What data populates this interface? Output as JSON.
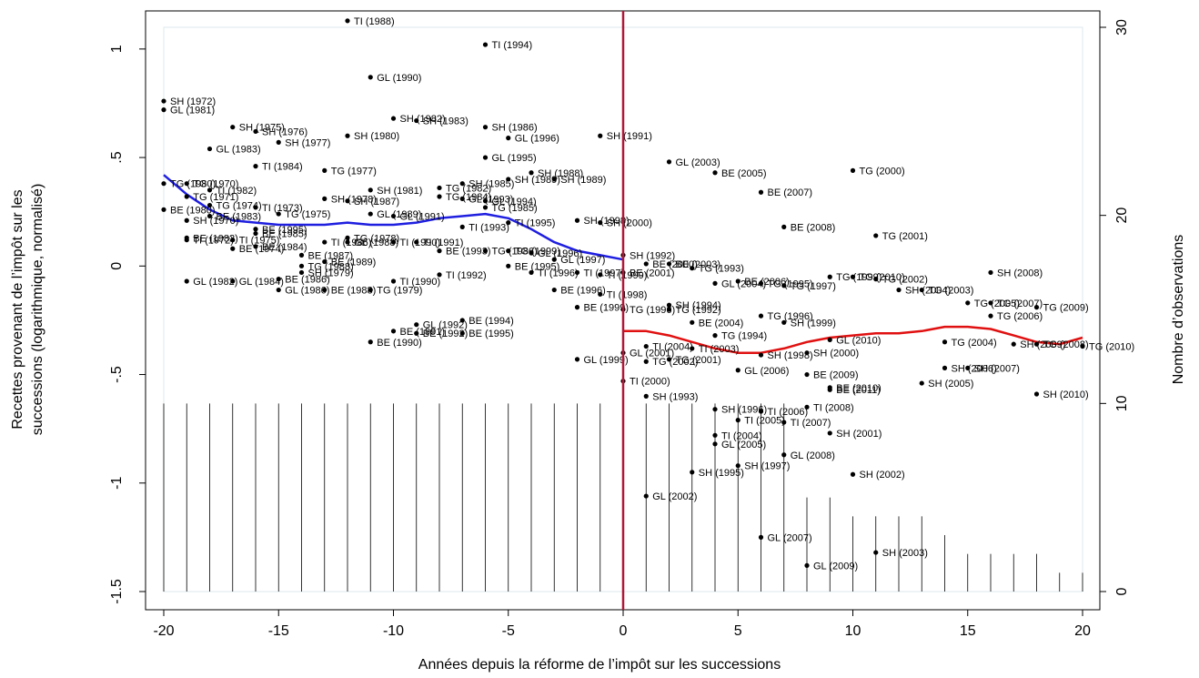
{
  "chart_data": {
    "type": "scatter",
    "title": "",
    "xlabel": "Années depuis la réforme de l’impôt sur les successions",
    "ylabel_lines": [
      "Recettes provenant de l’impôt sur les",
      "successions (logarithmique, normalisé)"
    ],
    "ylabel_right": "Nombre d’observations",
    "xlim": [
      -20,
      20
    ],
    "ylim": [
      -1.5,
      1.1
    ],
    "ylim_right": [
      0,
      30
    ],
    "x_ticks": [
      -20,
      -15,
      -10,
      -5,
      0,
      5,
      10,
      15,
      20
    ],
    "y_ticks": [
      -1.5,
      -1,
      -0.5,
      0,
      0.5,
      1
    ],
    "y_tick_labels": [
      "-1.5",
      "-1",
      "-.5",
      "0",
      ".5",
      "1"
    ],
    "y_ticks_right": [
      0,
      10,
      20,
      30
    ],
    "reference_line_x": 0,
    "colors": {
      "pre_trend": "#1f1fe0",
      "post_trend": "#e01010",
      "reform_line": "#b0183a",
      "points": "#000000"
    },
    "points": [
      {
        "x": -12,
        "y": 1.13,
        "label": "TI (1988)"
      },
      {
        "x": -6,
        "y": 1.02,
        "label": "TI (1994)"
      },
      {
        "x": -11,
        "y": 0.87,
        "label": "GL (1990)"
      },
      {
        "x": -20,
        "y": 0.76,
        "label": "SH (1972)"
      },
      {
        "x": -20,
        "y": 0.72,
        "label": "GL (1981)"
      },
      {
        "x": -10,
        "y": 0.68,
        "label": "SH (1982)"
      },
      {
        "x": -9,
        "y": 0.67,
        "label": "SH (1983)"
      },
      {
        "x": -17,
        "y": 0.64,
        "label": "SH (1975)"
      },
      {
        "x": -16,
        "y": 0.62,
        "label": "SH (1976)"
      },
      {
        "x": -6,
        "y": 0.64,
        "label": "SH (1986)"
      },
      {
        "x": -12,
        "y": 0.6,
        "label": "SH (1980)"
      },
      {
        "x": -1,
        "y": 0.6,
        "label": "SH (1991)"
      },
      {
        "x": -5,
        "y": 0.59,
        "label": "GL (1996)"
      },
      {
        "x": -15,
        "y": 0.57,
        "label": "SH (1977)"
      },
      {
        "x": -18,
        "y": 0.54,
        "label": "GL (1983)"
      },
      {
        "x": -6,
        "y": 0.5,
        "label": "GL (1995)"
      },
      {
        "x": 2,
        "y": 0.48,
        "label": "GL (2003)"
      },
      {
        "x": -16,
        "y": 0.46,
        "label": "TI (1984)"
      },
      {
        "x": -13,
        "y": 0.44,
        "label": "TG (1977)"
      },
      {
        "x": 10,
        "y": 0.44,
        "label": "TG (2000)"
      },
      {
        "x": 4,
        "y": 0.43,
        "label": "BE (2005)"
      },
      {
        "x": -4,
        "y": 0.43,
        "label": "SH (1988)"
      },
      {
        "x": -5,
        "y": 0.4,
        "label": "SH (1989)"
      },
      {
        "x": -3,
        "y": 0.4,
        "label": "SH (1989)"
      },
      {
        "x": -20,
        "y": 0.38,
        "label": "TG (1980)"
      },
      {
        "x": -19,
        "y": 0.38,
        "label": "TG (1970)"
      },
      {
        "x": -7,
        "y": 0.38,
        "label": "SH (1985)"
      },
      {
        "x": -18,
        "y": 0.35,
        "label": "TI (1982)"
      },
      {
        "x": -11,
        "y": 0.35,
        "label": "SH (1981)"
      },
      {
        "x": -8,
        "y": 0.36,
        "label": "TG (1982)"
      },
      {
        "x": 6,
        "y": 0.34,
        "label": "BE (2007)"
      },
      {
        "x": -19,
        "y": 0.32,
        "label": "TG (1971)"
      },
      {
        "x": -13,
        "y": 0.31,
        "label": "SH (1978)"
      },
      {
        "x": -12,
        "y": 0.3,
        "label": "SH (1987)"
      },
      {
        "x": -8,
        "y": 0.32,
        "label": "TG (1984)"
      },
      {
        "x": -7,
        "y": 0.31,
        "label": "GL (1993)"
      },
      {
        "x": -6,
        "y": 0.3,
        "label": "GL (1994)"
      },
      {
        "x": -18,
        "y": 0.28,
        "label": "TG (1974)"
      },
      {
        "x": -16,
        "y": 0.27,
        "label": "TI (1973)"
      },
      {
        "x": -6,
        "y": 0.27,
        "label": "TG (1985)"
      },
      {
        "x": -20,
        "y": 0.26,
        "label": "BE (1980)"
      },
      {
        "x": -18,
        "y": 0.23,
        "label": "BE (1983)"
      },
      {
        "x": -15,
        "y": 0.24,
        "label": "TG (1975)"
      },
      {
        "x": -11,
        "y": 0.24,
        "label": "GL (1989)"
      },
      {
        "x": -10,
        "y": 0.23,
        "label": "GL (1991)"
      },
      {
        "x": -19,
        "y": 0.21,
        "label": "SH (1970)"
      },
      {
        "x": -5,
        "y": 0.2,
        "label": "TI (1995)"
      },
      {
        "x": -2,
        "y": 0.21,
        "label": "SH (1998)"
      },
      {
        "x": -1,
        "y": 0.2,
        "label": "SH (2000)"
      },
      {
        "x": -7,
        "y": 0.18,
        "label": "TI (1993)"
      },
      {
        "x": 7,
        "y": 0.18,
        "label": "BE (2008)"
      },
      {
        "x": -16,
        "y": 0.17,
        "label": "BE (1995)"
      },
      {
        "x": -16,
        "y": 0.15,
        "label": "BE (1985)"
      },
      {
        "x": 11,
        "y": 0.14,
        "label": "TG (2001)"
      },
      {
        "x": -19,
        "y": 0.13,
        "label": "BE (1982)"
      },
      {
        "x": -19,
        "y": 0.12,
        "label": "TI (1972)"
      },
      {
        "x": -12,
        "y": 0.13,
        "label": "TG (1978)"
      },
      {
        "x": -17,
        "y": 0.12,
        "label": "TI (1975)"
      },
      {
        "x": -13,
        "y": 0.11,
        "label": "TI (1986)"
      },
      {
        "x": -12,
        "y": 0.11,
        "label": "GL (1988)"
      },
      {
        "x": -10,
        "y": 0.11,
        "label": "TI (1990)"
      },
      {
        "x": -9,
        "y": 0.11,
        "label": "TI (1991)"
      },
      {
        "x": -16,
        "y": 0.09,
        "label": "BE (1984)"
      },
      {
        "x": -17,
        "y": 0.08,
        "label": "BE (1974)"
      },
      {
        "x": -6,
        "y": 0.07,
        "label": "TG (1986)"
      },
      {
        "x": -8,
        "y": 0.07,
        "label": "BE (1993)"
      },
      {
        "x": -5,
        "y": 0.07,
        "label": "TG (1999)"
      },
      {
        "x": -4,
        "y": 0.06,
        "label": "GL (1996)"
      },
      {
        "x": 0,
        "y": 0.05,
        "label": "SH (1992)"
      },
      {
        "x": -14,
        "y": 0.05,
        "label": "BE (1987)"
      },
      {
        "x": -3,
        "y": 0.03,
        "label": "GL (1997)"
      },
      {
        "x": 1,
        "y": 0.01,
        "label": "BE (2000)"
      },
      {
        "x": 2,
        "y": 0.01,
        "label": "BE (2003)"
      },
      {
        "x": -13,
        "y": 0.02,
        "label": "BE (1989)"
      },
      {
        "x": -14,
        "y": 0.0,
        "label": "TG (1988)"
      },
      {
        "x": -5,
        "y": 0.0,
        "label": "BE (1995)"
      },
      {
        "x": 3,
        "y": -0.01,
        "label": "TG (1993)"
      },
      {
        "x": -14,
        "y": -0.03,
        "label": "SH (1979)"
      },
      {
        "x": -4,
        "y": -0.03,
        "label": "TI (1996)"
      },
      {
        "x": -2,
        "y": -0.03,
        "label": "TI (1997)"
      },
      {
        "x": 0,
        "y": -0.03,
        "label": "BE (2001)"
      },
      {
        "x": -15,
        "y": -0.06,
        "label": "BE (1986)"
      },
      {
        "x": -8,
        "y": -0.04,
        "label": "TI (1992)"
      },
      {
        "x": -1,
        "y": -0.04,
        "label": "TI (1999)"
      },
      {
        "x": 9,
        "y": -0.05,
        "label": "TG (1999)"
      },
      {
        "x": 10,
        "y": -0.05,
        "label": "TG (2010)"
      },
      {
        "x": 11,
        "y": -0.06,
        "label": "TG (2002)"
      },
      {
        "x": 16,
        "y": -0.03,
        "label": "SH (2008)"
      },
      {
        "x": 5,
        "y": -0.07,
        "label": "BE (2006)"
      },
      {
        "x": 6,
        "y": -0.08,
        "label": "TG (1995)"
      },
      {
        "x": -19,
        "y": -0.07,
        "label": "GL (1982)"
      },
      {
        "x": -17,
        "y": -0.07,
        "label": "GL (1984)"
      },
      {
        "x": -10,
        "y": -0.07,
        "label": "TI (1990)"
      },
      {
        "x": 4,
        "y": -0.08,
        "label": "GL (2004)"
      },
      {
        "x": 7,
        "y": -0.09,
        "label": "TG (1997)"
      },
      {
        "x": 12,
        "y": -0.11,
        "label": "SH (2004)"
      },
      {
        "x": 13,
        "y": -0.11,
        "label": "TG (2003)"
      },
      {
        "x": -15,
        "y": -0.11,
        "label": "GL (1986)"
      },
      {
        "x": -13,
        "y": -0.11,
        "label": "BE (1988)"
      },
      {
        "x": -11,
        "y": -0.11,
        "label": "TG (1979)"
      },
      {
        "x": -3,
        "y": -0.11,
        "label": "BE (1996)"
      },
      {
        "x": -1,
        "y": -0.13,
        "label": "TI (1998)"
      },
      {
        "x": -2,
        "y": -0.19,
        "label": "BE (1999)"
      },
      {
        "x": 2,
        "y": -0.18,
        "label": "SH (1994)"
      },
      {
        "x": 15,
        "y": -0.17,
        "label": "TG (2005)"
      },
      {
        "x": 16,
        "y": -0.17,
        "label": "TG (2007)"
      },
      {
        "x": 18,
        "y": -0.19,
        "label": "TG (2009)"
      },
      {
        "x": 0,
        "y": -0.2,
        "label": "TG (1996)"
      },
      {
        "x": 2,
        "y": -0.2,
        "label": "TG (1992)"
      },
      {
        "x": 6,
        "y": -0.23,
        "label": "TG (1996)"
      },
      {
        "x": 16,
        "y": -0.23,
        "label": "TG (2006)"
      },
      {
        "x": -7,
        "y": -0.25,
        "label": "BE (1994)"
      },
      {
        "x": 3,
        "y": -0.26,
        "label": "BE (2004)"
      },
      {
        "x": 7,
        "y": -0.26,
        "label": "SH (1999)"
      },
      {
        "x": -9,
        "y": -0.27,
        "label": "GL (1992)"
      },
      {
        "x": -10,
        "y": -0.3,
        "label": "BE (1991)"
      },
      {
        "x": -9,
        "y": -0.31,
        "label": "BE (1992)"
      },
      {
        "x": -7,
        "y": -0.31,
        "label": "BE (1995)"
      },
      {
        "x": 4,
        "y": -0.32,
        "label": "TG (1994)"
      },
      {
        "x": -11,
        "y": -0.35,
        "label": "BE (1990)"
      },
      {
        "x": 9,
        "y": -0.34,
        "label": "GL (2010)"
      },
      {
        "x": 14,
        "y": -0.35,
        "label": "TG (2004)"
      },
      {
        "x": 17,
        "y": -0.36,
        "label": "SH (2009)"
      },
      {
        "x": 18,
        "y": -0.36,
        "label": "TG (2008)"
      },
      {
        "x": 20,
        "y": -0.37,
        "label": "TG (2010)"
      },
      {
        "x": 1,
        "y": -0.37,
        "label": "TI (2004)"
      },
      {
        "x": 3,
        "y": -0.38,
        "label": "TI (2003)"
      },
      {
        "x": 0,
        "y": -0.4,
        "label": "GL (2001)"
      },
      {
        "x": 6,
        "y": -0.41,
        "label": "SH (1998)"
      },
      {
        "x": 8,
        "y": -0.4,
        "label": "SH (2000)"
      },
      {
        "x": -2,
        "y": -0.43,
        "label": "GL (1999)"
      },
      {
        "x": 1,
        "y": -0.44,
        "label": "TG (2002)"
      },
      {
        "x": 2,
        "y": -0.43,
        "label": "TG (2001)"
      },
      {
        "x": 5,
        "y": -0.48,
        "label": "GL (2006)"
      },
      {
        "x": 8,
        "y": -0.5,
        "label": "BE (2009)"
      },
      {
        "x": 14,
        "y": -0.47,
        "label": "SH (2006)"
      },
      {
        "x": 15,
        "y": -0.47,
        "label": "SH (2007)"
      },
      {
        "x": 0,
        "y": -0.53,
        "label": "TI (2000)"
      },
      {
        "x": 9,
        "y": -0.56,
        "label": "BE (2010)"
      },
      {
        "x": 9,
        "y": -0.57,
        "label": "BE (2011)"
      },
      {
        "x": 13,
        "y": -0.54,
        "label": "SH (2005)"
      },
      {
        "x": 1,
        "y": -0.6,
        "label": "SH (1993)"
      },
      {
        "x": 18,
        "y": -0.59,
        "label": "SH (2010)"
      },
      {
        "x": 4,
        "y": -0.66,
        "label": "SH (1996)"
      },
      {
        "x": 6,
        "y": -0.67,
        "label": "TI (2006)"
      },
      {
        "x": 8,
        "y": -0.65,
        "label": "TI (2008)"
      },
      {
        "x": 5,
        "y": -0.71,
        "label": "TI (2005)"
      },
      {
        "x": 7,
        "y": -0.72,
        "label": "TI (2007)"
      },
      {
        "x": 9,
        "y": -0.77,
        "label": "SH (2001)"
      },
      {
        "x": 4,
        "y": -0.78,
        "label": "TI (2004)"
      },
      {
        "x": 4,
        "y": -0.82,
        "label": "GL (2005)"
      },
      {
        "x": 7,
        "y": -0.87,
        "label": "GL (2008)"
      },
      {
        "x": 5,
        "y": -0.92,
        "label": "SH (1997)"
      },
      {
        "x": 3,
        "y": -0.95,
        "label": "SH (1995)"
      },
      {
        "x": 10,
        "y": -0.96,
        "label": "SH (2002)"
      },
      {
        "x": 1,
        "y": -1.06,
        "label": "GL (2002)"
      },
      {
        "x": 6,
        "y": -1.25,
        "label": "GL (2007)"
      },
      {
        "x": 11,
        "y": -1.32,
        "label": "SH (2003)"
      },
      {
        "x": 8,
        "y": -1.38,
        "label": "GL (2009)"
      }
    ],
    "trend_pre": {
      "x": [
        -20,
        -19,
        -18,
        -17,
        -16,
        -15,
        -14,
        -13,
        -12,
        -11,
        -10,
        -9,
        -8,
        -7,
        -6,
        -5,
        -4,
        -3,
        -2,
        -1,
        0
      ],
      "y": [
        0.42,
        0.33,
        0.26,
        0.21,
        0.2,
        0.19,
        0.19,
        0.19,
        0.2,
        0.19,
        0.19,
        0.2,
        0.22,
        0.23,
        0.24,
        0.22,
        0.17,
        0.11,
        0.07,
        0.05,
        0.03
      ]
    },
    "trend_post": {
      "x": [
        0,
        1,
        2,
        3,
        4,
        5,
        6,
        7,
        8,
        9,
        10,
        11,
        12,
        13,
        14,
        15,
        16,
        17,
        18,
        19,
        20
      ],
      "y": [
        -0.3,
        -0.3,
        -0.32,
        -0.35,
        -0.38,
        -0.4,
        -0.4,
        -0.38,
        -0.35,
        -0.33,
        -0.32,
        -0.31,
        -0.31,
        -0.3,
        -0.28,
        -0.28,
        -0.29,
        -0.32,
        -0.35,
        -0.36,
        -0.33
      ]
    },
    "observations": {
      "x": [
        -20,
        -19,
        -18,
        -17,
        -16,
        -15,
        -14,
        -13,
        -12,
        -11,
        -10,
        -9,
        -8,
        -7,
        -6,
        -5,
        -4,
        -3,
        -2,
        -1,
        0,
        1,
        2,
        3,
        4,
        5,
        6,
        7,
        8,
        9,
        10,
        11,
        12,
        13,
        14,
        15,
        16,
        17,
        18,
        19,
        20
      ],
      "count": [
        10,
        10,
        10,
        10,
        10,
        10,
        10,
        10,
        10,
        10,
        10,
        10,
        10,
        10,
        10,
        10,
        10,
        10,
        10,
        10,
        10,
        10,
        10,
        10,
        10,
        10,
        10,
        10,
        5,
        5,
        4,
        4,
        4,
        4,
        3,
        2,
        2,
        2,
        2,
        1,
        1
      ]
    }
  }
}
